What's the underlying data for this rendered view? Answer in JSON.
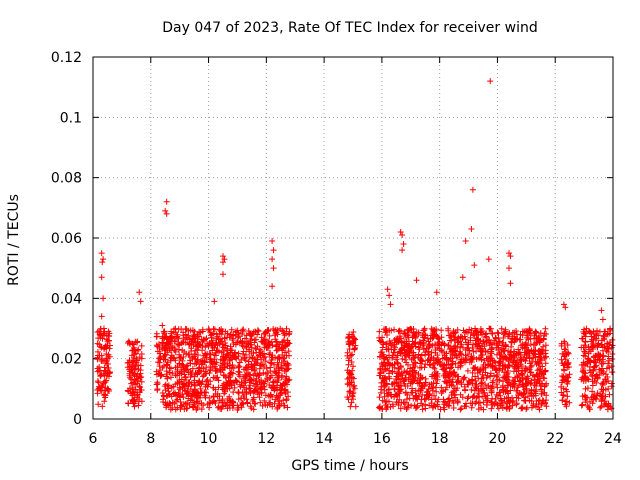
{
  "chart_data": {
    "type": "scatter",
    "title": "Day 047 of 2023, Rate Of TEC Index for receiver wind",
    "xlabel": "GPS time / hours",
    "ylabel": "ROTI / TECUs",
    "xlim": [
      6,
      24
    ],
    "ylim": [
      0,
      0.12
    ],
    "xticks": [
      6,
      8,
      10,
      12,
      14,
      16,
      18,
      20,
      22,
      24
    ],
    "xtick_labels": [
      "6",
      "8",
      "10",
      "12",
      "14",
      "16",
      "18",
      "20",
      "22",
      "24"
    ],
    "yticks": [
      0,
      0.02,
      0.04,
      0.06,
      0.08,
      0.1,
      0.12
    ],
    "ytick_labels": [
      "0",
      "0.02",
      "0.04",
      "0.06",
      "0.08",
      "0.1",
      "0.12"
    ],
    "grid": true,
    "marker": "plus",
    "color": "#ff0000",
    "series": [
      {
        "name": "ROTI",
        "clusters": [
          {
            "x_range": [
              6.15,
              6.6
            ],
            "y_range": [
              0.004,
              0.03
            ],
            "count": 110
          },
          {
            "x_range": [
              7.2,
              7.7
            ],
            "y_range": [
              0.004,
              0.026
            ],
            "count": 110
          },
          {
            "x_range": [
              8.2,
              12.8
            ],
            "y_range": [
              0.003,
              0.03
            ],
            "count": 1100
          },
          {
            "x_range": [
              14.8,
              15.1
            ],
            "y_range": [
              0.004,
              0.03
            ],
            "count": 70
          },
          {
            "x_range": [
              15.9,
              21.7
            ],
            "y_range": [
              0.003,
              0.03
            ],
            "count": 1400
          },
          {
            "x_range": [
              22.2,
              22.5
            ],
            "y_range": [
              0.004,
              0.026
            ],
            "count": 60
          },
          {
            "x_range": [
              22.9,
              24.0
            ],
            "y_range": [
              0.003,
              0.03
            ],
            "count": 230
          }
        ],
        "points": [
          [
            6.3,
            0.055
          ],
          [
            6.35,
            0.053
          ],
          [
            6.32,
            0.052
          ],
          [
            6.3,
            0.047
          ],
          [
            6.35,
            0.04
          ],
          [
            6.3,
            0.034
          ],
          [
            7.6,
            0.042
          ],
          [
            7.65,
            0.039
          ],
          [
            8.55,
            0.072
          ],
          [
            8.5,
            0.069
          ],
          [
            8.55,
            0.068
          ],
          [
            8.4,
            0.031
          ],
          [
            10.5,
            0.054
          ],
          [
            10.55,
            0.053
          ],
          [
            10.5,
            0.052
          ],
          [
            10.5,
            0.048
          ],
          [
            10.2,
            0.039
          ],
          [
            12.2,
            0.059
          ],
          [
            12.25,
            0.056
          ],
          [
            12.2,
            0.053
          ],
          [
            12.25,
            0.05
          ],
          [
            12.2,
            0.044
          ],
          [
            16.2,
            0.043
          ],
          [
            16.25,
            0.041
          ],
          [
            16.3,
            0.038
          ],
          [
            16.65,
            0.062
          ],
          [
            16.7,
            0.061
          ],
          [
            16.75,
            0.058
          ],
          [
            16.7,
            0.056
          ],
          [
            17.2,
            0.046
          ],
          [
            17.9,
            0.042
          ],
          [
            18.8,
            0.047
          ],
          [
            18.9,
            0.059
          ],
          [
            19.15,
            0.076
          ],
          [
            19.1,
            0.063
          ],
          [
            19.2,
            0.051
          ],
          [
            19.75,
            0.112
          ],
          [
            19.7,
            0.053
          ],
          [
            20.4,
            0.055
          ],
          [
            20.45,
            0.054
          ],
          [
            20.4,
            0.05
          ],
          [
            20.45,
            0.045
          ],
          [
            22.3,
            0.038
          ],
          [
            22.35,
            0.037
          ],
          [
            23.6,
            0.036
          ],
          [
            23.65,
            0.033
          ],
          [
            23.9,
            0.03
          ]
        ]
      }
    ]
  }
}
